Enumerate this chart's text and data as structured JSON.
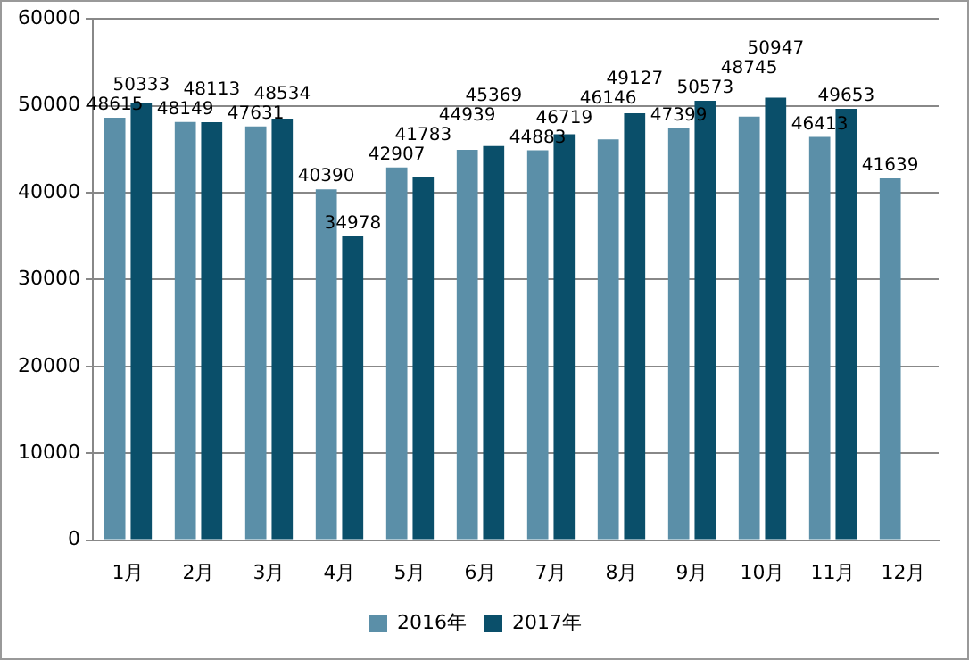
{
  "chart_data": {
    "type": "bar",
    "categories": [
      "1月",
      "2月",
      "3月",
      "4月",
      "5月",
      "6月",
      "7月",
      "8月",
      "9月",
      "10月",
      "11月",
      "12月"
    ],
    "series": [
      {
        "name": "2016年",
        "color": "#5b8fa8",
        "values": [
          48615,
          48149,
          47631,
          40390,
          42907,
          44939,
          44883,
          46146,
          47399,
          48745,
          46413,
          41639
        ]
      },
      {
        "name": "2017年",
        "color": "#0a4f6a",
        "values": [
          50333,
          48113,
          48534,
          34978,
          41783,
          45369,
          46719,
          49127,
          50573,
          50947,
          49653,
          null
        ]
      }
    ],
    "ylim": [
      0,
      60000
    ],
    "yticks": [
      0,
      10000,
      20000,
      30000,
      40000,
      50000,
      60000
    ],
    "grid": "y",
    "legend": "bottom",
    "data_labels": true
  }
}
